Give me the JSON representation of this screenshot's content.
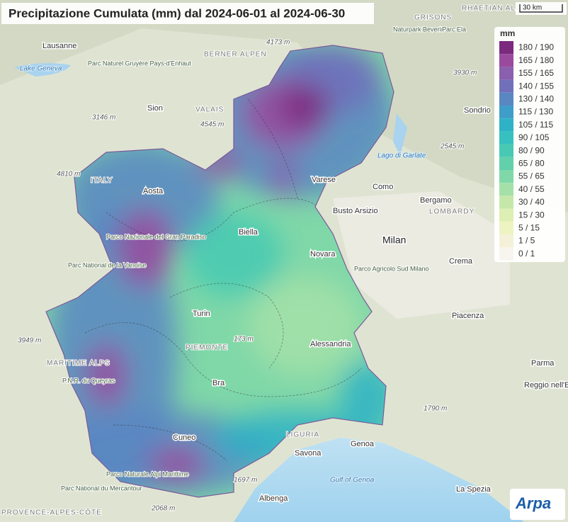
{
  "title": "Precipitazione Cumulata (mm) dal 2024-06-01 al 2024-06-30",
  "legend": {
    "title": "mm",
    "items": [
      {
        "label": "180 / 190",
        "color": "#7b2a7e"
      },
      {
        "label": "165 / 180",
        "color": "#9a4a9c"
      },
      {
        "label": "155 / 165",
        "color": "#8a5fae"
      },
      {
        "label": "140 / 155",
        "color": "#7070ba"
      },
      {
        "label": "130 / 140",
        "color": "#5a86c2"
      },
      {
        "label": "115 / 130",
        "color": "#3f9ec9"
      },
      {
        "label": "105 / 115",
        "color": "#2eb2c6"
      },
      {
        "label": "90 / 105",
        "color": "#36c0bf"
      },
      {
        "label": "80 / 90",
        "color": "#47c9b3"
      },
      {
        "label": "65 / 80",
        "color": "#62d0ab"
      },
      {
        "label": "55 / 65",
        "color": "#80d8a8"
      },
      {
        "label": "40 / 55",
        "color": "#a4e0a8"
      },
      {
        "label": "30 / 40",
        "color": "#c5e8aa"
      },
      {
        "label": "15 / 30",
        "color": "#ddefb2"
      },
      {
        "label": "5 / 15",
        "color": "#eef3c2"
      },
      {
        "label": "1 / 5",
        "color": "#f4f1d8"
      },
      {
        "label": "0 / 1",
        "color": "#f7f5ee"
      }
    ]
  },
  "scale": "30 km",
  "logo": "Arpa",
  "places": [
    "Lausanne",
    "Lake Geneva",
    "Sion",
    "VALAIS",
    "4545 m",
    "3146 m",
    "4173 m",
    "BERNER ALPEN",
    "Parc Naturel Gruyère Pays-d'Enhaut",
    "Naturpark Beverin",
    "GRISONS",
    "Parc Ela",
    "3930 m",
    "Sondrio",
    "2545 m",
    "Lago di Garlate",
    "4810 m",
    "ITALY",
    "Aosta",
    "Biella",
    "Varese",
    "Como",
    "Bergamo",
    "Busto Arsizio",
    "LOMBARDY",
    "Milan",
    "Novara",
    "Crema",
    "Parco Agricolo Sud Milano",
    "Parc National de la Vanoise",
    "Parco Nazionale del Gran Paradiso",
    "Turin",
    "PIEMONTE",
    "173 m",
    "Alessandria",
    "Piacenza",
    "3949 m",
    "MARITIME ALPS",
    "Parma",
    "Reggio nell'Emilia",
    "P.N.R. du Queyras",
    "Bra",
    "1790 m",
    "Cuneo",
    "LIGURIA",
    "Savona",
    "Genoa",
    "Gulf of Genoa",
    "Parco Naturale Alpi Marittime",
    "Parc National du Mercantour",
    "1697 m",
    "Albenga",
    "2068 m",
    "La Spezia",
    "PROVENCE-ALPES-CÔTE",
    "RHAETIAN ALPS"
  ]
}
